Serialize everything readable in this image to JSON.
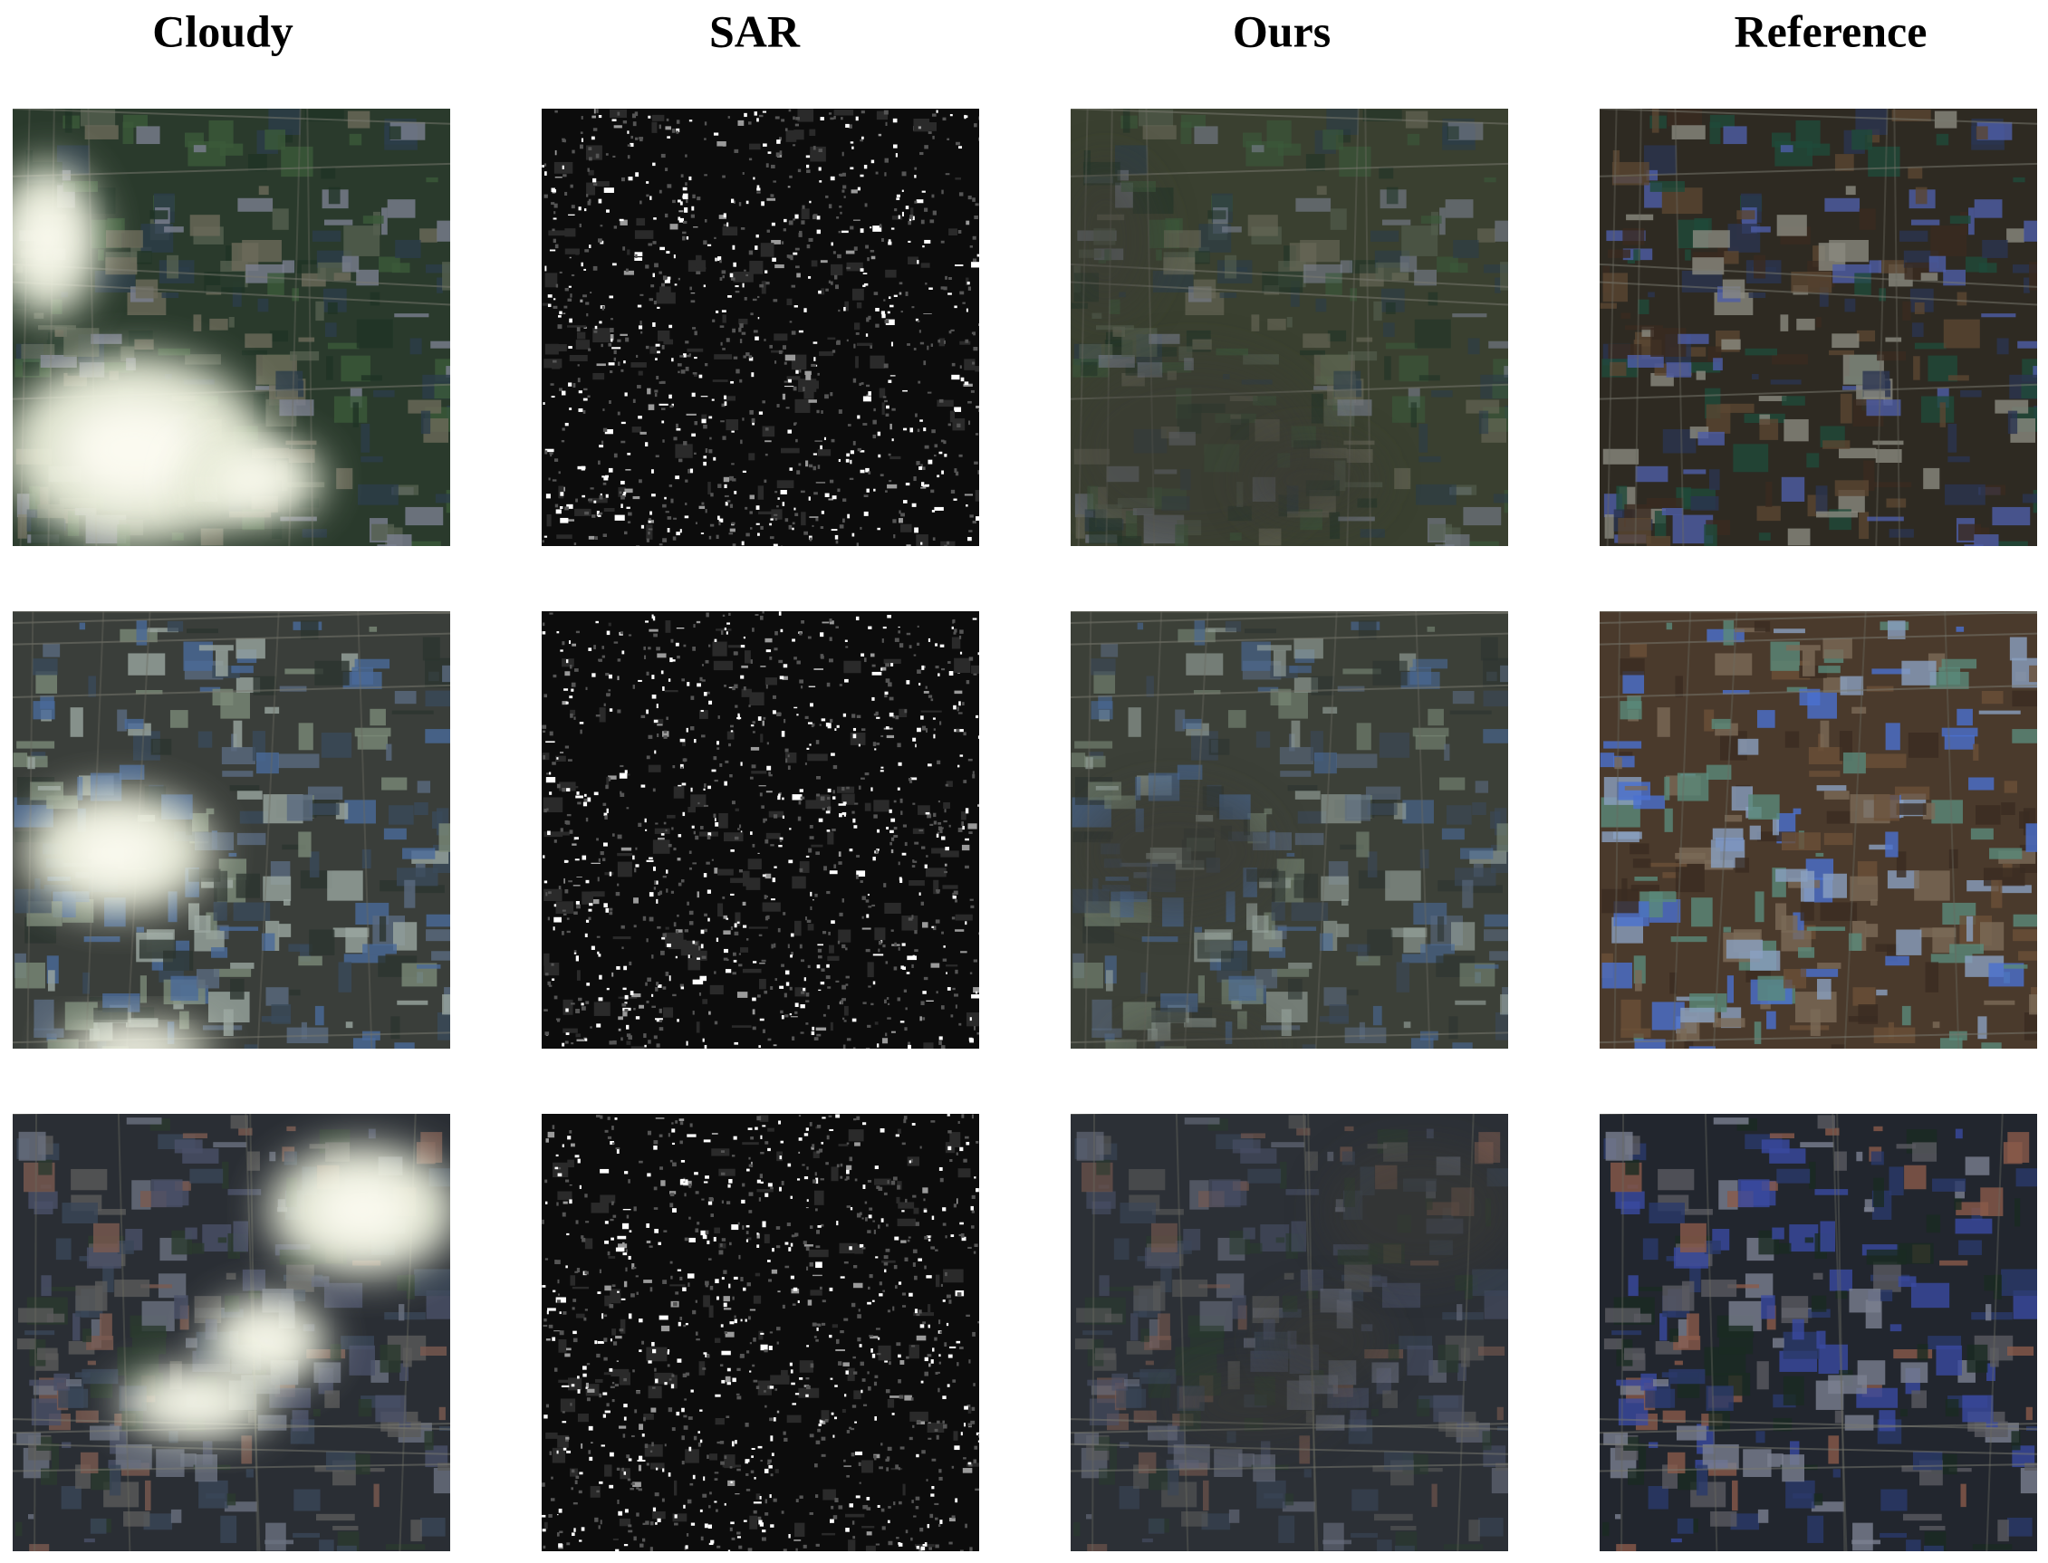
{
  "columns": [
    "Cloudy",
    "SAR",
    "Ours",
    "Reference"
  ]
}
